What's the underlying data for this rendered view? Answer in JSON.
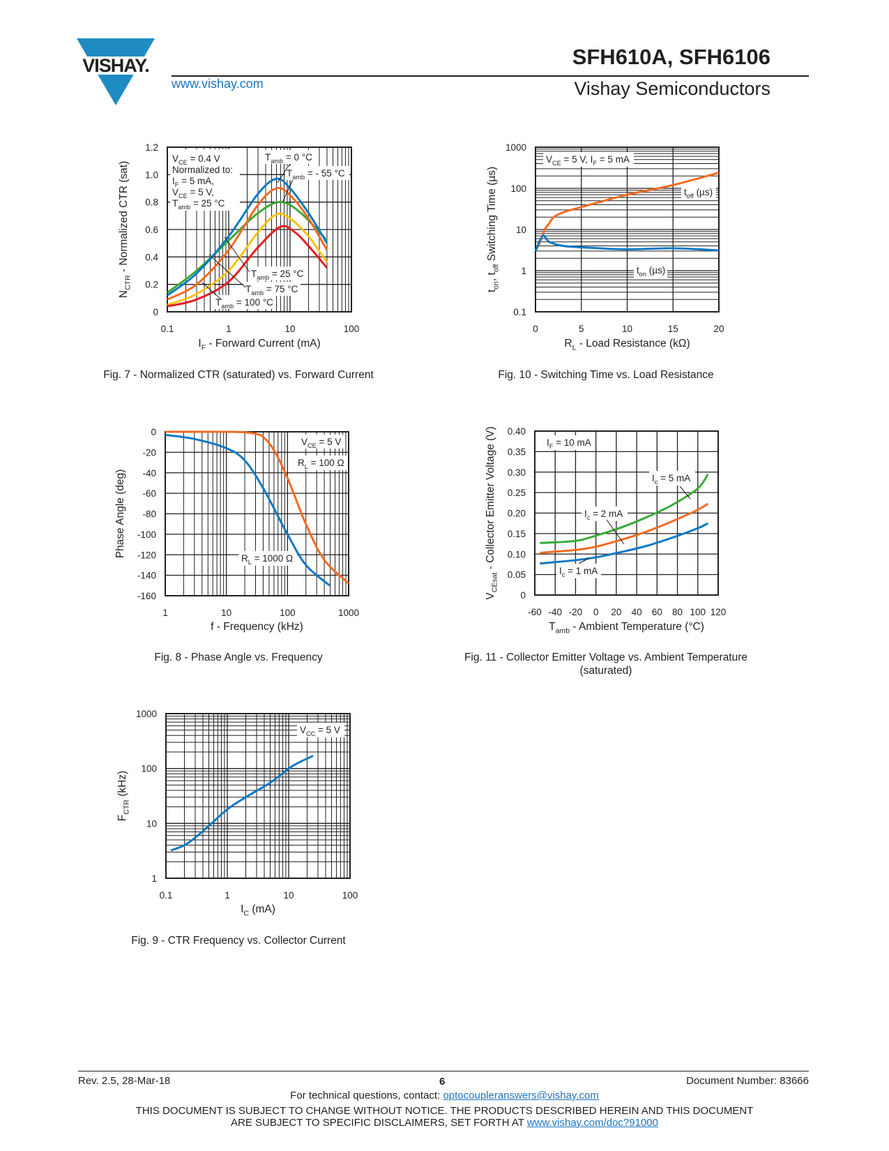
{
  "header": {
    "logo_text": "VISHAY.",
    "website": "www.vishay.com",
    "title": "SFH610A, SFH6106",
    "subtitle": "Vishay Semiconductors",
    "brand_color": "#1e8bc3"
  },
  "footer": {
    "revision": "Rev. 2.5, 28-Mar-18",
    "page_number": "6",
    "document_number": "Document Number: 83666",
    "contact_prefix": "For technical questions, contact: ",
    "contact_email": "optocoupleranswers@vishay.com",
    "disclaimer_line1": "THIS DOCUMENT IS SUBJECT TO CHANGE WITHOUT NOTICE. THE PRODUCTS DESCRIBED HEREIN AND THIS DOCUMENT",
    "disclaimer_line2_prefix": "ARE SUBJECT TO SPECIFIC DISCLAIMERS, SET FORTH AT ",
    "disclaimer_link": "www.vishay.com/doc?91000"
  },
  "chart_data": [
    {
      "id": "fig7",
      "type": "line",
      "caption": "Fig. 7 - Normalized CTR (saturated) vs. Forward Current",
      "xlabel": "I_{F} - Forward Current (mA)",
      "ylabel": "N_{CTR} - Normalized CTR (sat)",
      "xscale": "log",
      "xlim": [
        0.1,
        100
      ],
      "yscale": "linear",
      "ylim": [
        0,
        1.2
      ],
      "xticks": [
        "0.1",
        "1",
        "10",
        "100"
      ],
      "yticks": [
        "0",
        "0.2",
        "0.4",
        "0.6",
        "0.8",
        "1.0",
        "1.2"
      ],
      "grid": true,
      "annotations": [
        "V_{CE} = 0.4 V",
        "Normalized to:",
        "I_{F} = 5 mA,",
        "V_{CE} = 5 V,",
        "T_{amb} = 25 °C",
        "T_{amb} = 0 °C",
        "T_{amb} = - 55 °C",
        "T_{amb} = 25 °C",
        "T_{amb} = 75 °C",
        "T_{amb} = 100 °C"
      ],
      "series": [
        {
          "label": "T_{amb} = - 55 °C",
          "color": "#3aaa35",
          "x": [
            0.1,
            0.3,
            1,
            3,
            7,
            15,
            40
          ],
          "y": [
            0.14,
            0.3,
            0.52,
            0.72,
            0.8,
            0.72,
            0.52
          ]
        },
        {
          "label": "T_{amb} = 0 °C",
          "color": "#0a79c4",
          "x": [
            0.1,
            0.3,
            1,
            3,
            6,
            10,
            20,
            40
          ],
          "y": [
            0.12,
            0.28,
            0.55,
            0.86,
            0.97,
            0.9,
            0.72,
            0.5
          ]
        },
        {
          "label": "T_{amb} = 25 °C",
          "color": "#f26b21",
          "x": [
            0.1,
            0.3,
            1,
            3,
            6,
            10,
            20,
            40
          ],
          "y": [
            0.09,
            0.2,
            0.45,
            0.78,
            0.9,
            0.85,
            0.68,
            0.45
          ]
        },
        {
          "label": "T_{amb} = 75 °C",
          "color": "#ffc20e",
          "x": [
            0.1,
            0.3,
            1,
            3,
            6,
            10,
            20,
            40
          ],
          "y": [
            0.05,
            0.13,
            0.3,
            0.58,
            0.71,
            0.68,
            0.55,
            0.36
          ]
        },
        {
          "label": "T_{amb} = 100 °C",
          "color": "#e31e24",
          "x": [
            0.1,
            0.3,
            1,
            3,
            7,
            12,
            20,
            40
          ],
          "y": [
            0.04,
            0.09,
            0.22,
            0.47,
            0.62,
            0.58,
            0.48,
            0.32
          ]
        }
      ]
    },
    {
      "id": "fig10",
      "type": "line",
      "caption": "Fig. 10 - Switching Time vs. Load Resistance",
      "xlabel": "R_{L} - Load Resistance (kΩ)",
      "ylabel": "t_{on}, t_{off} Switching Time (µs)",
      "xscale": "linear",
      "xlim": [
        0,
        20
      ],
      "yscale": "log",
      "ylim": [
        0.1,
        1000
      ],
      "xticks": [
        "0",
        "5",
        "10",
        "15",
        "20"
      ],
      "yticks": [
        "0.1",
        "1",
        "10",
        "100",
        "1000"
      ],
      "grid": true,
      "annotations": [
        "V_{CE} = 5 V, I_{F} = 5 mA",
        "t_{off} (µs)",
        "t_{on} (µs)"
      ],
      "series": [
        {
          "label": "t_{off} (µs)",
          "color": "#f26b21",
          "x": [
            0,
            0.5,
            1,
            1.5,
            2,
            3,
            5,
            10,
            15,
            20
          ],
          "y": [
            3,
            5,
            10,
            14,
            20,
            26,
            35,
            70,
            120,
            240
          ]
        },
        {
          "label": "t_{on} (µs)",
          "color": "#0a79c4",
          "x": [
            0,
            0.8,
            1.5,
            3,
            6,
            10,
            15,
            20
          ],
          "y": [
            3,
            7,
            5,
            4,
            3.6,
            3.3,
            3.5,
            3.1
          ]
        }
      ]
    },
    {
      "id": "fig8",
      "type": "line",
      "caption": "Fig. 8 - Phase Angle vs. Frequency",
      "xlabel": "f - Frequency (kHz)",
      "ylabel": "Phase Angle (deg)",
      "xscale": "log",
      "xlim": [
        1,
        1000
      ],
      "yscale": "linear",
      "ylim": [
        -160,
        0
      ],
      "xticks": [
        "1",
        "10",
        "100",
        "1000"
      ],
      "yticks": [
        "-160",
        "-140",
        "-120",
        "-100",
        "-80",
        "-60",
        "-40",
        "-20",
        "0"
      ],
      "grid": true,
      "annotations": [
        "V_{CE} = 5 V",
        "R_{L} = 100 Ω",
        "R_{L} = 1000 Ω"
      ],
      "series": [
        {
          "label": "R_{L} = 100 Ω",
          "color": "#f26b21",
          "x": [
            1,
            10,
            20,
            30,
            40,
            60,
            100,
            200,
            400,
            1000
          ],
          "y": [
            0,
            0,
            -0.5,
            -2,
            -5,
            -18,
            -45,
            -90,
            -125,
            -148
          ]
        },
        {
          "label": "R_{L} = 1000 Ω",
          "color": "#0a79c4",
          "x": [
            1,
            3,
            10,
            20,
            40,
            100,
            200,
            490
          ],
          "y": [
            -3,
            -7,
            -16,
            -28,
            -55,
            -100,
            -130,
            -150
          ]
        }
      ]
    },
    {
      "id": "fig11",
      "type": "line",
      "caption": "Fig. 11 - Collector Emitter Voltage vs. Ambient Temperature",
      "caption_line2": "(saturated)",
      "xlabel": "T_{amb} - Ambient Temperature (°C)",
      "ylabel": "V_{CEsat} - Collector Emitter Voltage (V)",
      "xscale": "linear",
      "xlim": [
        -60,
        120
      ],
      "yscale": "linear",
      "ylim": [
        0,
        0.4
      ],
      "xticks": [
        "-60",
        "-40",
        "-20",
        "0",
        "20",
        "40",
        "60",
        "80",
        "100",
        "120"
      ],
      "yticks": [
        "0",
        "0.05",
        "0.10",
        "0.15",
        "0.20",
        "0.25",
        "0.30",
        "0.35",
        "0.40"
      ],
      "grid": true,
      "annotations": [
        "I_{F} = 10 mA",
        "I_{c} = 5 mA",
        "I_{c} = 2 mA",
        "I_{c} = 1 mA"
      ],
      "series": [
        {
          "label": "I_{c} = 5 mA",
          "color": "#3aaa35",
          "x": [
            -55,
            -20,
            0,
            25,
            50,
            75,
            100,
            110
          ],
          "y": [
            0.127,
            0.132,
            0.145,
            0.165,
            0.19,
            0.22,
            0.26,
            0.295
          ]
        },
        {
          "label": "I_{c} = 2 mA",
          "color": "#f26b21",
          "x": [
            -55,
            -20,
            0,
            25,
            50,
            75,
            100,
            110
          ],
          "y": [
            0.103,
            0.11,
            0.118,
            0.135,
            0.155,
            0.18,
            0.208,
            0.223
          ]
        },
        {
          "label": "I_{c} = 1 mA",
          "color": "#0a79c4",
          "x": [
            -55,
            -20,
            0,
            25,
            50,
            75,
            100,
            110
          ],
          "y": [
            0.077,
            0.085,
            0.092,
            0.105,
            0.12,
            0.14,
            0.163,
            0.175
          ]
        }
      ]
    },
    {
      "id": "fig9",
      "type": "line",
      "caption": "Fig. 9 - CTR Frequency vs. Collector Current",
      "xlabel": "I_{C} (mA)",
      "ylabel": "F_{CTR} (kHz)",
      "xscale": "log",
      "xlim": [
        0.1,
        100
      ],
      "yscale": "log",
      "ylim": [
        1,
        1000
      ],
      "xticks": [
        "0.1",
        "1",
        "10",
        "100"
      ],
      "yticks": [
        "1",
        "10",
        "100",
        "1000"
      ],
      "grid": true,
      "annotations": [
        "V_{CC} = 5 V"
      ],
      "series": [
        {
          "color": "#0a79c4",
          "x": [
            0.12,
            0.2,
            0.3,
            0.5,
            1,
            2,
            5,
            10,
            15,
            25
          ],
          "y": [
            3.2,
            4,
            5.5,
            9,
            18,
            30,
            55,
            100,
            130,
            170
          ]
        }
      ]
    }
  ]
}
